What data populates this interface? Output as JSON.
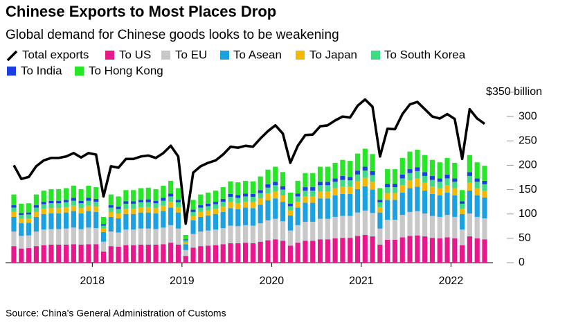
{
  "chart_data": {
    "type": "bar",
    "stacked": true,
    "title": "Chinese Exports to Most Places Drop",
    "subtitle": "Global demand for Chinese goods looks to be weakening",
    "source": "Source: China's General Administration of Customs",
    "x": [
      "2017-02",
      "2017-03",
      "2017-04",
      "2017-05",
      "2017-06",
      "2017-07",
      "2017-08",
      "2017-09",
      "2017-10",
      "2017-11",
      "2017-12",
      "2018-01",
      "2018-02",
      "2018-03",
      "2018-04",
      "2018-05",
      "2018-06",
      "2018-07",
      "2018-08",
      "2018-09",
      "2018-10",
      "2018-11",
      "2018-12",
      "2019-01",
      "2019-02",
      "2019-03",
      "2019-04",
      "2019-05",
      "2019-06",
      "2019-07",
      "2019-08",
      "2019-09",
      "2019-10",
      "2019-11",
      "2019-12",
      "2020-01",
      "2020-02",
      "2020-03",
      "2020-04",
      "2020-05",
      "2020-06",
      "2020-07",
      "2020-08",
      "2020-09",
      "2020-10",
      "2020-11",
      "2020-12",
      "2021-01",
      "2021-02",
      "2021-03",
      "2021-04",
      "2021-05",
      "2021-06",
      "2021-07",
      "2021-08",
      "2021-09",
      "2021-10",
      "2021-11",
      "2021-12",
      "2022-01",
      "2022-02",
      "2022-03",
      "2022-04",
      "2022-05"
    ],
    "xticks": [
      2018,
      2019,
      2020,
      2021,
      2022
    ],
    "ylim": [
      0,
      350
    ],
    "yticks": [
      0,
      50,
      100,
      150,
      200,
      250,
      300,
      {
        "value": 350,
        "label": "$350 billion"
      }
    ],
    "series": [
      {
        "name": "Total exports",
        "type": "line",
        "color": "#000000",
        "values": [
          200,
          172,
          176,
          198,
          210,
          215,
          215,
          218,
          225,
          216,
          225,
          222,
          136,
          198,
          195,
          213,
          213,
          218,
          220,
          215,
          225,
          240,
          218,
          80,
          185,
          198,
          205,
          210,
          222,
          238,
          236,
          240,
          238,
          255,
          270,
          282,
          265,
          205,
          240,
          262,
          263,
          280,
          282,
          292,
          300,
          298,
          322,
          335,
          320,
          218,
          275,
          274,
          305,
          325,
          330,
          315,
          300,
          296,
          305,
          295,
          213,
          315,
          296,
          285
        ]
      },
      {
        "name": "To US",
        "color": "#e8178c",
        "values": [
          34,
          29,
          30,
          34,
          36,
          37,
          37,
          37,
          38,
          37,
          38,
          38,
          23,
          34,
          33,
          36,
          36,
          37,
          37,
          37,
          38,
          41,
          37,
          14,
          31,
          34,
          35,
          36,
          38,
          40,
          40,
          41,
          40,
          43,
          46,
          48,
          45,
          35,
          41,
          45,
          45,
          48,
          48,
          50,
          51,
          51,
          55,
          57,
          54,
          37,
          47,
          47,
          52,
          55,
          56,
          54,
          51,
          50,
          52,
          50,
          36,
          54,
          50,
          48
        ]
      },
      {
        "name": "To EU",
        "color": "#c8c8c8",
        "values": [
          30,
          26,
          26,
          30,
          32,
          32,
          32,
          33,
          34,
          32,
          34,
          33,
          20,
          30,
          29,
          32,
          32,
          33,
          33,
          32,
          34,
          36,
          33,
          12,
          28,
          30,
          31,
          32,
          33,
          36,
          35,
          36,
          36,
          38,
          41,
          42,
          40,
          31,
          36,
          39,
          39,
          42,
          42,
          44,
          45,
          45,
          48,
          50,
          48,
          33,
          41,
          41,
          46,
          49,
          50,
          47,
          45,
          44,
          46,
          44,
          32,
          47,
          44,
          43
        ]
      },
      {
        "name": "To Asean",
        "color": "#1ba1e2",
        "values": [
          30,
          26,
          26,
          30,
          32,
          32,
          32,
          33,
          34,
          32,
          34,
          33,
          20,
          30,
          29,
          32,
          32,
          33,
          33,
          32,
          34,
          36,
          33,
          12,
          28,
          30,
          31,
          32,
          33,
          36,
          35,
          36,
          36,
          38,
          41,
          42,
          40,
          31,
          36,
          39,
          39,
          42,
          42,
          44,
          45,
          45,
          48,
          50,
          48,
          33,
          41,
          41,
          46,
          49,
          50,
          47,
          45,
          44,
          46,
          44,
          32,
          47,
          44,
          43
        ]
      },
      {
        "name": "To Japan",
        "color": "#f5b800",
        "values": [
          10,
          9,
          9,
          10,
          11,
          11,
          11,
          11,
          11,
          11,
          11,
          11,
          7,
          10,
          10,
          11,
          11,
          11,
          11,
          11,
          11,
          12,
          11,
          4,
          9,
          10,
          10,
          11,
          11,
          12,
          12,
          12,
          12,
          13,
          14,
          14,
          13,
          10,
          12,
          13,
          13,
          14,
          14,
          15,
          15,
          15,
          16,
          17,
          16,
          11,
          14,
          14,
          15,
          16,
          17,
          16,
          15,
          15,
          15,
          15,
          11,
          16,
          15,
          14
        ]
      },
      {
        "name": "To South Korea",
        "color": "#3ddc84",
        "values": [
          9,
          8,
          8,
          9,
          9,
          10,
          10,
          10,
          10,
          10,
          10,
          10,
          6,
          9,
          9,
          10,
          10,
          10,
          10,
          10,
          10,
          11,
          10,
          4,
          8,
          9,
          9,
          9,
          10,
          11,
          11,
          11,
          11,
          11,
          12,
          13,
          12,
          9,
          11,
          12,
          12,
          13,
          13,
          13,
          14,
          13,
          14,
          15,
          14,
          10,
          12,
          12,
          14,
          15,
          15,
          14,
          14,
          13,
          14,
          13,
          10,
          14,
          13,
          13
        ]
      },
      {
        "name": "To India",
        "color": "#1a3fe0",
        "values": [
          5,
          4,
          4,
          5,
          5,
          5,
          5,
          5,
          6,
          5,
          6,
          6,
          3,
          5,
          5,
          5,
          5,
          5,
          6,
          5,
          6,
          6,
          5,
          2,
          5,
          5,
          5,
          5,
          6,
          6,
          6,
          6,
          6,
          6,
          7,
          7,
          7,
          5,
          6,
          7,
          7,
          7,
          7,
          7,
          8,
          7,
          8,
          8,
          8,
          5,
          7,
          7,
          8,
          8,
          8,
          8,
          8,
          7,
          8,
          7,
          5,
          8,
          7,
          7
        ]
      },
      {
        "name": "To Hong Kong",
        "color": "#27e627",
        "values": [
          22,
          19,
          19,
          22,
          23,
          24,
          24,
          24,
          25,
          24,
          25,
          24,
          15,
          22,
          21,
          23,
          23,
          24,
          24,
          24,
          25,
          26,
          24,
          9,
          20,
          22,
          23,
          23,
          24,
          26,
          26,
          26,
          26,
          28,
          30,
          31,
          29,
          23,
          26,
          29,
          29,
          31,
          31,
          32,
          33,
          33,
          35,
          37,
          35,
          24,
          30,
          30,
          34,
          36,
          36,
          35,
          33,
          33,
          34,
          32,
          23,
          35,
          33,
          31
        ]
      }
    ]
  }
}
